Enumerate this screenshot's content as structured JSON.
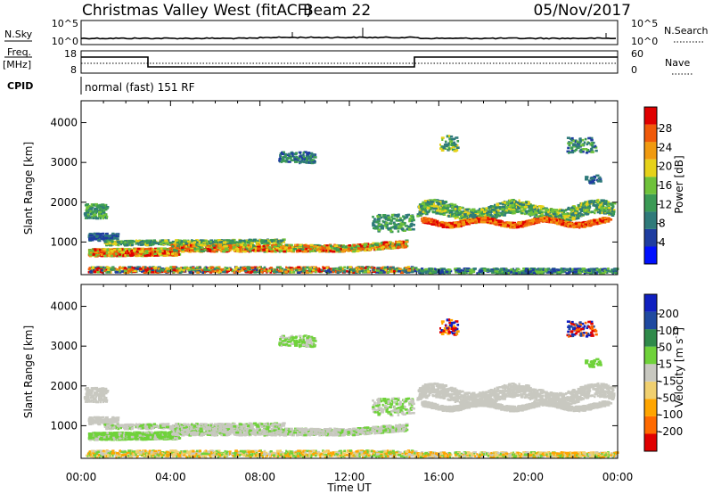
{
  "header": {
    "site": "Christmas Valley West (fitACF)",
    "beam": "Beam 22",
    "date": "05/Nov/2017"
  },
  "panels": {
    "nsky_label": "N.Sky",
    "nsearch_label": "N.Search",
    "nsky_ticks": [
      "10^5",
      "10^0"
    ],
    "nsearch_ticks": [
      "10^5",
      "10^0"
    ],
    "freq_label": "Freq.",
    "freq_unit": "[MHz]",
    "freq_ticks": [
      "18",
      "8"
    ],
    "nave_label": "Nave",
    "nave_ticks": [
      "60",
      "0"
    ],
    "cpid_label": "CPID",
    "cpid_text": "normal (fast) 151 RF"
  },
  "colors": {
    "power": [
      "#0010ff",
      "#1f3da0",
      "#2f7a7a",
      "#3b9a55",
      "#6fc23a",
      "#e6d21a",
      "#f09a10",
      "#f05a0a",
      "#e00000"
    ],
    "velocity": [
      "#e00000",
      "#ff6a00",
      "#ffa500",
      "#f0d070",
      "#c8c8c0",
      "#6fd23a",
      "#2f8a4a",
      "#1f4aa0",
      "#1020c0"
    ]
  },
  "chart_data": [
    {
      "type": "heatmap",
      "name": "Power",
      "xlabel": "Time UT",
      "ylabel": "Slant Range [km]",
      "x_ticks": [
        "00:00",
        "04:00",
        "08:00",
        "12:00",
        "16:00",
        "20:00",
        "00:00"
      ],
      "y_ticks": [
        "1000",
        "2000",
        "3000",
        "4000"
      ],
      "xlim_hours": [
        0,
        24
      ],
      "ylim_km": [
        180,
        4550
      ],
      "colorbar_label": "Power [dB]",
      "colorbar_ticks": [
        "28",
        "24",
        "20",
        "16",
        "12",
        "8",
        "4"
      ],
      "colorbar_range": [
        0,
        30
      ]
    },
    {
      "type": "heatmap",
      "name": "Velocity",
      "xlabel": "Time UT",
      "ylabel": "Slant Range [km]",
      "x_ticks": [
        "00:00",
        "04:00",
        "08:00",
        "12:00",
        "16:00",
        "20:00",
        "00:00"
      ],
      "y_ticks": [
        "1000",
        "2000",
        "3000",
        "4000"
      ],
      "xlim_hours": [
        0,
        24
      ],
      "ylim_km": [
        180,
        4550
      ],
      "colorbar_label": "Velocity [m s",
      "colorbar_label_sup": "-1",
      "colorbar_label_end": "]",
      "colorbar_ticks": [
        "200",
        "100",
        "50",
        "15",
        "-15",
        "-50",
        "-100",
        "-200"
      ]
    }
  ]
}
